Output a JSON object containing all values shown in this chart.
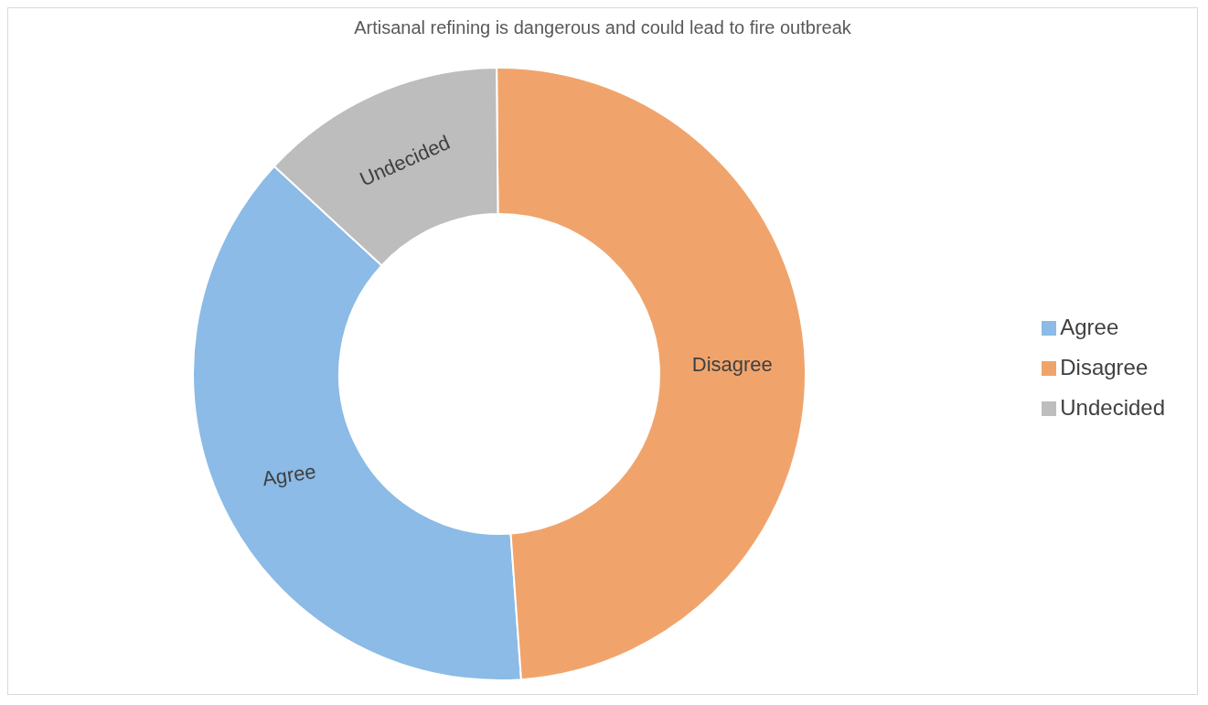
{
  "chart_data": {
    "type": "donut",
    "title": "Artisanal refining is dangerous and could lead to fire outbreak",
    "categories": [
      "Agree",
      "Disagree",
      "Undecided"
    ],
    "values": [
      38,
      49,
      13
    ],
    "colors": [
      "#8bbbe6",
      "#f0a46c",
      "#bdbdbd"
    ],
    "legend": "right"
  }
}
